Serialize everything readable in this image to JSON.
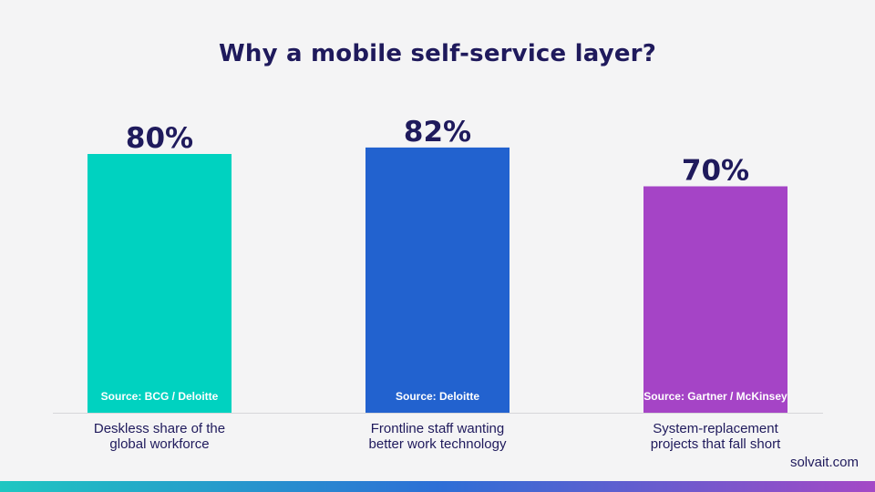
{
  "title": "Why a mobile self-service layer?",
  "brand": "solvait.com",
  "colors": {
    "title": "#1f1a5c",
    "footer_gradient": [
      "#1fc7c1",
      "#2d6fd6",
      "#a449c6"
    ]
  },
  "chart_data": {
    "type": "bar",
    "title": "Why a mobile self-service layer?",
    "xlabel": "",
    "ylabel": "",
    "ylim": [
      0,
      100
    ],
    "grid": false,
    "categories": [
      [
        "Deskless share of the",
        "global workforce"
      ],
      [
        "Frontline staff wanting",
        "better work technology"
      ],
      [
        "System-replacement",
        "projects that fall short"
      ]
    ],
    "values": [
      80,
      82,
      70
    ],
    "value_labels": [
      "80%",
      "82%",
      "70%"
    ],
    "sources": [
      "Source: BCG / Deloitte",
      "Source: Deloitte",
      "Source: Gartner / McKinsey"
    ],
    "colors": [
      "#00d2c0",
      "#2262cf",
      "#a544c6"
    ]
  }
}
